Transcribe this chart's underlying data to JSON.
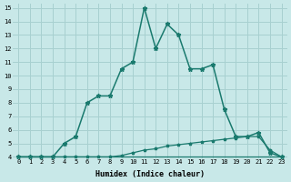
{
  "xlabel": "Humidex (Indice chaleur)",
  "x_ticks": [
    0,
    1,
    2,
    3,
    4,
    5,
    6,
    7,
    8,
    9,
    10,
    11,
    12,
    13,
    14,
    15,
    16,
    17,
    18,
    19,
    20,
    21,
    22,
    23
  ],
  "line1_x": [
    0,
    1,
    2,
    3,
    4,
    5,
    6,
    7,
    8,
    9,
    10,
    11,
    12,
    13,
    14,
    15,
    16,
    17,
    18,
    19,
    20,
    21,
    22,
    23
  ],
  "line1_y": [
    4,
    4,
    4,
    4,
    5,
    5.5,
    8,
    8.5,
    8.5,
    10.5,
    11,
    15,
    12,
    13.8,
    13,
    10.5,
    10.5,
    10.8,
    7.5,
    5.5,
    5.5,
    5.8,
    4.3,
    4
  ],
  "line2_x": [
    0,
    1,
    2,
    3,
    4,
    5,
    6,
    7,
    8,
    9,
    10,
    11,
    12,
    13,
    14,
    15,
    16,
    17,
    18,
    19,
    20,
    21,
    22,
    23
  ],
  "line2_y": [
    4,
    4,
    4,
    4,
    4,
    4,
    4,
    4,
    4,
    4,
    4,
    4,
    4,
    4,
    4,
    4,
    4,
    4,
    4,
    4,
    4,
    4,
    4,
    4
  ],
  "line3_x": [
    0,
    1,
    2,
    3,
    4,
    5,
    6,
    7,
    8,
    9,
    10,
    11,
    12,
    13,
    14,
    15,
    16,
    17,
    18,
    19,
    20,
    21,
    22,
    23
  ],
  "line3_y": [
    4,
    4,
    4,
    4,
    4,
    4,
    4,
    4,
    4,
    4.1,
    4.3,
    4.5,
    4.6,
    4.8,
    4.9,
    5.0,
    5.1,
    5.2,
    5.3,
    5.4,
    5.5,
    5.5,
    4.5,
    4
  ],
  "line_color": "#1a7a6e",
  "bg_color": "#c8e8e8",
  "grid_color": "#a8d0d0",
  "ylim": [
    4,
    15
  ],
  "yticks": [
    4,
    5,
    6,
    7,
    8,
    9,
    10,
    11,
    12,
    13,
    14,
    15
  ]
}
